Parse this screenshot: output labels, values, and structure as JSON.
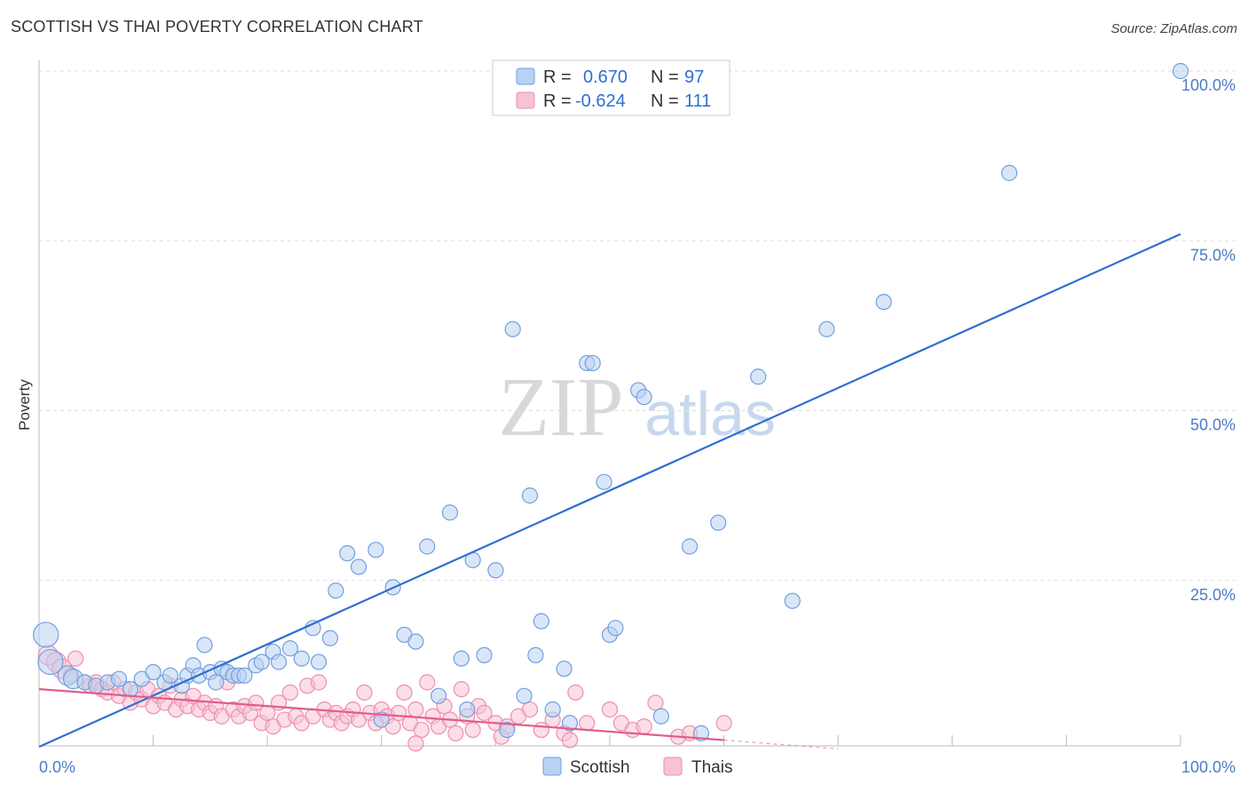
{
  "title": "SCOTTISH VS THAI POVERTY CORRELATION CHART",
  "source": "Source: ZipAtlas.com",
  "watermark": {
    "zip": "ZIP",
    "atlas": "atlas"
  },
  "chart_data": {
    "type": "scatter",
    "title": "SCOTTISH VS THAI POVERTY CORRELATION CHART",
    "xlabel": "",
    "ylabel": "Poverty",
    "xlim": [
      0,
      100
    ],
    "ylim": [
      0,
      100
    ],
    "x_tick_labels": [
      "0.0%",
      "100.0%"
    ],
    "y_ticks": [
      25,
      50,
      75,
      100
    ],
    "y_tick_labels": [
      "25.0%",
      "50.0%",
      "75.0%",
      "100.0%"
    ],
    "grid": true,
    "legend": {
      "placement": "top-center",
      "entries": [
        {
          "r_label": "R =",
          "r_value": "0.670",
          "n_label": "N =",
          "n_value": "97"
        },
        {
          "r_label": "R =",
          "r_value": "-0.624",
          "n_label": "N =",
          "n_value": "111"
        }
      ]
    },
    "series": [
      {
        "name": "Scottish",
        "color": "#6fa0e0",
        "fill": "#b9d1f3",
        "line_color": "#2f6fd0",
        "trend": {
          "x": [
            0,
            100
          ],
          "y": [
            0.5,
            76
          ]
        },
        "points": [
          {
            "x": 0.6,
            "y": 17.0,
            "s": 3
          },
          {
            "x": 1.0,
            "y": 13.0,
            "s": 3
          },
          {
            "x": 2.5,
            "y": 11.0,
            "s": 2
          },
          {
            "x": 3.0,
            "y": 10.5,
            "s": 2
          },
          {
            "x": 4.0,
            "y": 10.0,
            "s": 1
          },
          {
            "x": 5.0,
            "y": 9.5,
            "s": 1
          },
          {
            "x": 6.0,
            "y": 10.0,
            "s": 1
          },
          {
            "x": 7.0,
            "y": 10.5,
            "s": 1
          },
          {
            "x": 8.0,
            "y": 9.0,
            "s": 1
          },
          {
            "x": 9.0,
            "y": 10.5,
            "s": 1
          },
          {
            "x": 10.0,
            "y": 11.5,
            "s": 1
          },
          {
            "x": 11.0,
            "y": 10.0,
            "s": 1
          },
          {
            "x": 11.5,
            "y": 11.0,
            "s": 1
          },
          {
            "x": 12.5,
            "y": 9.5,
            "s": 1
          },
          {
            "x": 13.0,
            "y": 11.0,
            "s": 1
          },
          {
            "x": 13.5,
            "y": 12.5,
            "s": 1
          },
          {
            "x": 14.0,
            "y": 11.0,
            "s": 1
          },
          {
            "x": 14.5,
            "y": 15.5,
            "s": 1
          },
          {
            "x": 15.0,
            "y": 11.5,
            "s": 1
          },
          {
            "x": 15.5,
            "y": 10.0,
            "s": 1
          },
          {
            "x": 16.0,
            "y": 12.0,
            "s": 1
          },
          {
            "x": 16.5,
            "y": 11.5,
            "s": 1
          },
          {
            "x": 17.0,
            "y": 11.0,
            "s": 1
          },
          {
            "x": 17.5,
            "y": 11.0,
            "s": 1
          },
          {
            "x": 18.0,
            "y": 11.0,
            "s": 1
          },
          {
            "x": 19.0,
            "y": 12.5,
            "s": 1
          },
          {
            "x": 19.5,
            "y": 13.0,
            "s": 1
          },
          {
            "x": 20.5,
            "y": 14.5,
            "s": 1
          },
          {
            "x": 21.0,
            "y": 13.0,
            "s": 1
          },
          {
            "x": 22.0,
            "y": 15.0,
            "s": 1
          },
          {
            "x": 23.0,
            "y": 13.5,
            "s": 1
          },
          {
            "x": 24.0,
            "y": 18.0,
            "s": 1
          },
          {
            "x": 24.5,
            "y": 13.0,
            "s": 1
          },
          {
            "x": 25.5,
            "y": 16.5,
            "s": 1
          },
          {
            "x": 26.0,
            "y": 23.5,
            "s": 1
          },
          {
            "x": 27.0,
            "y": 29.0,
            "s": 1
          },
          {
            "x": 28.0,
            "y": 27.0,
            "s": 1
          },
          {
            "x": 29.5,
            "y": 29.5,
            "s": 1
          },
          {
            "x": 30.0,
            "y": 4.5,
            "s": 1
          },
          {
            "x": 31.0,
            "y": 24.0,
            "s": 1
          },
          {
            "x": 32.0,
            "y": 17.0,
            "s": 1
          },
          {
            "x": 33.0,
            "y": 16.0,
            "s": 1
          },
          {
            "x": 34.0,
            "y": 30.0,
            "s": 1
          },
          {
            "x": 35.0,
            "y": 8.0,
            "s": 1
          },
          {
            "x": 36.0,
            "y": 35.0,
            "s": 1
          },
          {
            "x": 37.0,
            "y": 13.5,
            "s": 1
          },
          {
            "x": 37.5,
            "y": 6.0,
            "s": 1
          },
          {
            "x": 38.0,
            "y": 28.0,
            "s": 1
          },
          {
            "x": 39.0,
            "y": 14.0,
            "s": 1
          },
          {
            "x": 40.0,
            "y": 26.5,
            "s": 1
          },
          {
            "x": 41.0,
            "y": 3.0,
            "s": 1
          },
          {
            "x": 41.5,
            "y": 62.0,
            "s": 1
          },
          {
            "x": 42.5,
            "y": 8.0,
            "s": 1
          },
          {
            "x": 43.0,
            "y": 37.5,
            "s": 1
          },
          {
            "x": 43.5,
            "y": 14.0,
            "s": 1
          },
          {
            "x": 44.0,
            "y": 19.0,
            "s": 1
          },
          {
            "x": 45.0,
            "y": 6.0,
            "s": 1
          },
          {
            "x": 46.0,
            "y": 12.0,
            "s": 1
          },
          {
            "x": 46.5,
            "y": 4.0,
            "s": 1
          },
          {
            "x": 48.0,
            "y": 57.0,
            "s": 1
          },
          {
            "x": 48.5,
            "y": 57.0,
            "s": 1
          },
          {
            "x": 49.5,
            "y": 39.5,
            "s": 1
          },
          {
            "x": 50.0,
            "y": 17.0,
            "s": 1
          },
          {
            "x": 50.5,
            "y": 18.0,
            "s": 1
          },
          {
            "x": 52.5,
            "y": 53.0,
            "s": 1
          },
          {
            "x": 53.0,
            "y": 52.0,
            "s": 1
          },
          {
            "x": 54.5,
            "y": 5.0,
            "s": 1
          },
          {
            "x": 57.0,
            "y": 30.0,
            "s": 1
          },
          {
            "x": 58.0,
            "y": 2.5,
            "s": 1
          },
          {
            "x": 59.5,
            "y": 33.5,
            "s": 1
          },
          {
            "x": 63.0,
            "y": 55.0,
            "s": 1
          },
          {
            "x": 66.0,
            "y": 22.0,
            "s": 1
          },
          {
            "x": 69.0,
            "y": 62.0,
            "s": 1
          },
          {
            "x": 74.0,
            "y": 66.0,
            "s": 1
          },
          {
            "x": 85.0,
            "y": 85.0,
            "s": 1
          },
          {
            "x": 100.0,
            "y": 100.0,
            "s": 1
          }
        ]
      },
      {
        "name": "Thais",
        "color": "#ee8fae",
        "fill": "#f7c2d3",
        "line_color": "#e05d8b",
        "trend": {
          "x": [
            0,
            60
          ],
          "y": [
            9.0,
            1.5
          ]
        },
        "trend_dashed": {
          "x": [
            60,
            70
          ],
          "y": [
            1.5,
            0.2
          ]
        },
        "points": [
          {
            "x": 0.8,
            "y": 14.0,
            "s": 2
          },
          {
            "x": 1.5,
            "y": 13.0,
            "s": 2
          },
          {
            "x": 2.0,
            "y": 12.0,
            "s": 2
          },
          {
            "x": 2.8,
            "y": 11.0,
            "s": 1
          },
          {
            "x": 3.2,
            "y": 13.5,
            "s": 1
          },
          {
            "x": 4.0,
            "y": 10.0,
            "s": 1
          },
          {
            "x": 4.5,
            "y": 9.5,
            "s": 1
          },
          {
            "x": 5.0,
            "y": 10.0,
            "s": 1
          },
          {
            "x": 5.5,
            "y": 9.0,
            "s": 1
          },
          {
            "x": 6.0,
            "y": 8.5,
            "s": 1
          },
          {
            "x": 6.5,
            "y": 10.0,
            "s": 1
          },
          {
            "x": 7.0,
            "y": 8.0,
            "s": 1
          },
          {
            "x": 7.5,
            "y": 9.0,
            "s": 1
          },
          {
            "x": 8.0,
            "y": 7.0,
            "s": 1
          },
          {
            "x": 8.5,
            "y": 8.5,
            "s": 1
          },
          {
            "x": 9.0,
            "y": 7.5,
            "s": 1
          },
          {
            "x": 9.5,
            "y": 9.0,
            "s": 1
          },
          {
            "x": 10.0,
            "y": 6.5,
            "s": 1
          },
          {
            "x": 10.5,
            "y": 8.0,
            "s": 1
          },
          {
            "x": 11.0,
            "y": 7.0,
            "s": 1
          },
          {
            "x": 11.5,
            "y": 9.5,
            "s": 1
          },
          {
            "x": 12.0,
            "y": 6.0,
            "s": 1
          },
          {
            "x": 12.5,
            "y": 7.5,
            "s": 1
          },
          {
            "x": 13.0,
            "y": 6.5,
            "s": 1
          },
          {
            "x": 13.5,
            "y": 8.0,
            "s": 1
          },
          {
            "x": 14.0,
            "y": 6.0,
            "s": 1
          },
          {
            "x": 14.5,
            "y": 7.0,
            "s": 1
          },
          {
            "x": 15.0,
            "y": 5.5,
            "s": 1
          },
          {
            "x": 15.5,
            "y": 6.5,
            "s": 1
          },
          {
            "x": 16.0,
            "y": 5.0,
            "s": 1
          },
          {
            "x": 16.5,
            "y": 10.0,
            "s": 1
          },
          {
            "x": 17.0,
            "y": 6.0,
            "s": 1
          },
          {
            "x": 17.5,
            "y": 5.0,
            "s": 1
          },
          {
            "x": 18.0,
            "y": 6.5,
            "s": 1
          },
          {
            "x": 18.5,
            "y": 5.5,
            "s": 1
          },
          {
            "x": 19.0,
            "y": 7.0,
            "s": 1
          },
          {
            "x": 19.5,
            "y": 4.0,
            "s": 1
          },
          {
            "x": 20.0,
            "y": 5.5,
            "s": 1
          },
          {
            "x": 20.5,
            "y": 3.5,
            "s": 1
          },
          {
            "x": 21.0,
            "y": 7.0,
            "s": 1
          },
          {
            "x": 21.5,
            "y": 4.5,
            "s": 1
          },
          {
            "x": 22.0,
            "y": 8.5,
            "s": 1
          },
          {
            "x": 22.5,
            "y": 5.0,
            "s": 1
          },
          {
            "x": 23.0,
            "y": 4.0,
            "s": 1
          },
          {
            "x": 23.5,
            "y": 9.5,
            "s": 1
          },
          {
            "x": 24.0,
            "y": 5.0,
            "s": 1
          },
          {
            "x": 24.5,
            "y": 10.0,
            "s": 1
          },
          {
            "x": 25.0,
            "y": 6.0,
            "s": 1
          },
          {
            "x": 25.5,
            "y": 4.5,
            "s": 1
          },
          {
            "x": 26.0,
            "y": 5.5,
            "s": 1
          },
          {
            "x": 26.5,
            "y": 4.0,
            "s": 1
          },
          {
            "x": 27.0,
            "y": 5.0,
            "s": 1
          },
          {
            "x": 27.5,
            "y": 6.0,
            "s": 1
          },
          {
            "x": 28.0,
            "y": 4.5,
            "s": 1
          },
          {
            "x": 28.5,
            "y": 8.5,
            "s": 1
          },
          {
            "x": 29.0,
            "y": 5.5,
            "s": 1
          },
          {
            "x": 29.5,
            "y": 4.0,
            "s": 1
          },
          {
            "x": 30.0,
            "y": 6.0,
            "s": 1
          },
          {
            "x": 30.5,
            "y": 5.0,
            "s": 1
          },
          {
            "x": 31.0,
            "y": 3.5,
            "s": 1
          },
          {
            "x": 31.5,
            "y": 5.5,
            "s": 1
          },
          {
            "x": 32.0,
            "y": 8.5,
            "s": 1
          },
          {
            "x": 32.5,
            "y": 4.0,
            "s": 1
          },
          {
            "x": 33.0,
            "y": 6.0,
            "s": 1
          },
          {
            "x": 33.5,
            "y": 3.0,
            "s": 1
          },
          {
            "x": 34.0,
            "y": 10.0,
            "s": 1
          },
          {
            "x": 34.5,
            "y": 5.0,
            "s": 1
          },
          {
            "x": 35.0,
            "y": 3.5,
            "s": 1
          },
          {
            "x": 35.5,
            "y": 6.5,
            "s": 1
          },
          {
            "x": 36.0,
            "y": 4.5,
            "s": 1
          },
          {
            "x": 36.5,
            "y": 2.5,
            "s": 1
          },
          {
            "x": 37.0,
            "y": 9.0,
            "s": 1
          },
          {
            "x": 37.5,
            "y": 5.0,
            "s": 1
          },
          {
            "x": 38.0,
            "y": 3.0,
            "s": 1
          },
          {
            "x": 38.5,
            "y": 6.5,
            "s": 1
          },
          {
            "x": 39.0,
            "y": 5.5,
            "s": 1
          },
          {
            "x": 40.0,
            "y": 4.0,
            "s": 1
          },
          {
            "x": 41.0,
            "y": 3.5,
            "s": 1
          },
          {
            "x": 42.0,
            "y": 5.0,
            "s": 1
          },
          {
            "x": 43.0,
            "y": 6.0,
            "s": 1
          },
          {
            "x": 44.0,
            "y": 3.0,
            "s": 1
          },
          {
            "x": 45.0,
            "y": 4.5,
            "s": 1
          },
          {
            "x": 46.0,
            "y": 2.5,
            "s": 1
          },
          {
            "x": 47.0,
            "y": 8.5,
            "s": 1
          },
          {
            "x": 48.0,
            "y": 4.0,
            "s": 1
          },
          {
            "x": 50.0,
            "y": 6.0,
            "s": 1
          },
          {
            "x": 51.0,
            "y": 4.0,
            "s": 1
          },
          {
            "x": 52.0,
            "y": 3.0,
            "s": 1
          },
          {
            "x": 53.0,
            "y": 3.5,
            "s": 1
          },
          {
            "x": 54.0,
            "y": 7.0,
            "s": 1
          },
          {
            "x": 56.0,
            "y": 2.0,
            "s": 1
          },
          {
            "x": 57.0,
            "y": 2.5,
            "s": 1
          },
          {
            "x": 60.0,
            "y": 4.0,
            "s": 1
          },
          {
            "x": 33.0,
            "y": 1.0,
            "s": 1
          },
          {
            "x": 40.5,
            "y": 2.0,
            "s": 1
          },
          {
            "x": 46.5,
            "y": 1.5,
            "s": 1
          }
        ]
      }
    ]
  }
}
